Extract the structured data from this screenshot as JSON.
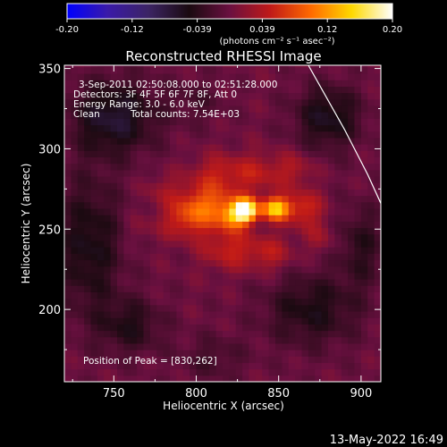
{
  "chart_data": {
    "type": "heatmap",
    "title": "Reconstructed RHESSI Image",
    "xlabel": "Heliocentric X (arcsec)",
    "ylabel": "Heliocentric Y (arcsec)",
    "xlim": [
      720,
      912
    ],
    "ylim": [
      155,
      352
    ],
    "x_ticks": [
      "750",
      "800",
      "850",
      "900"
    ],
    "y_ticks": [
      "200",
      "250",
      "300",
      "350"
    ],
    "colorbar": {
      "ticks": [
        "-0.20",
        "-0.12",
        "-0.039",
        "0.039",
        "0.12",
        "0.20"
      ],
      "range": [
        -0.2,
        0.2
      ],
      "unit_label": "(photons cm⁻² s⁻¹ asec⁻²)",
      "colors": [
        "#0000ff",
        "#3a1aa8",
        "#3c2464",
        "#1a0a10",
        "#6a1040",
        "#c01a18",
        "#ff6a00",
        "#ffd800",
        "#ffffff"
      ]
    },
    "annotations": {
      "time_range": "3-Sep-2011 02:50:08.000 to 02:51:28.000",
      "detectors": "Detectors: 3F 4F 5F 6F 7F 8F, Att 0",
      "energy": "Energy Range: 3.0 - 6.0 keV",
      "method": "Clean",
      "total_counts": "Total counts: 7.54E+03",
      "peak": "Position of Peak = [830,262]"
    },
    "peak": [
      830,
      262
    ],
    "limb_curve": [
      [
        868,
        352
      ],
      [
        890,
        312
      ],
      [
        904,
        284
      ],
      [
        912,
        266
      ]
    ],
    "sources": [
      {
        "x": 830,
        "y": 262,
        "amp": 0.2,
        "sx": 5,
        "sy": 5
      },
      {
        "x": 848,
        "y": 263,
        "amp": 0.15,
        "sx": 6,
        "sy": 5
      },
      {
        "x": 822,
        "y": 258,
        "amp": 0.08,
        "sx": 6,
        "sy": 6
      },
      {
        "x": 812,
        "y": 265,
        "amp": 0.06,
        "sx": 12,
        "sy": 9
      },
      {
        "x": 800,
        "y": 262,
        "amp": 0.05,
        "sx": 10,
        "sy": 10
      },
      {
        "x": 790,
        "y": 255,
        "amp": 0.035,
        "sx": 10,
        "sy": 8
      },
      {
        "x": 865,
        "y": 263,
        "amp": 0.06,
        "sx": 8,
        "sy": 8
      },
      {
        "x": 820,
        "y": 238,
        "amp": 0.05,
        "sx": 12,
        "sy": 9
      },
      {
        "x": 845,
        "y": 235,
        "amp": 0.04,
        "sx": 10,
        "sy": 8
      },
      {
        "x": 835,
        "y": 285,
        "amp": 0.045,
        "sx": 14,
        "sy": 9
      },
      {
        "x": 810,
        "y": 285,
        "amp": 0.035,
        "sx": 10,
        "sy": 8
      },
      {
        "x": 860,
        "y": 288,
        "amp": 0.03,
        "sx": 8,
        "sy": 7
      },
      {
        "x": 780,
        "y": 275,
        "amp": 0.025,
        "sx": 8,
        "sy": 7
      },
      {
        "x": 875,
        "y": 245,
        "amp": 0.025,
        "sx": 7,
        "sy": 7
      },
      {
        "x": 765,
        "y": 250,
        "amp": 0.015,
        "sx": 6,
        "sy": 6
      },
      {
        "x": 750,
        "y": 320,
        "amp": -0.07,
        "sx": 18,
        "sy": 16
      },
      {
        "x": 880,
        "y": 320,
        "amp": -0.06,
        "sx": 14,
        "sy": 14
      },
      {
        "x": 735,
        "y": 240,
        "amp": -0.055,
        "sx": 14,
        "sy": 30
      },
      {
        "x": 760,
        "y": 190,
        "amp": -0.045,
        "sx": 14,
        "sy": 12
      },
      {
        "x": 870,
        "y": 200,
        "amp": -0.05,
        "sx": 20,
        "sy": 16
      },
      {
        "x": 900,
        "y": 240,
        "amp": -0.04,
        "sx": 10,
        "sy": 18
      },
      {
        "x": 810,
        "y": 170,
        "amp": -0.025,
        "sx": 14,
        "sy": 10
      },
      {
        "x": 800,
        "y": 330,
        "amp": -0.02,
        "sx": 12,
        "sy": 10
      }
    ]
  },
  "footer": {
    "datestamp": "13-May-2022 16:49"
  }
}
